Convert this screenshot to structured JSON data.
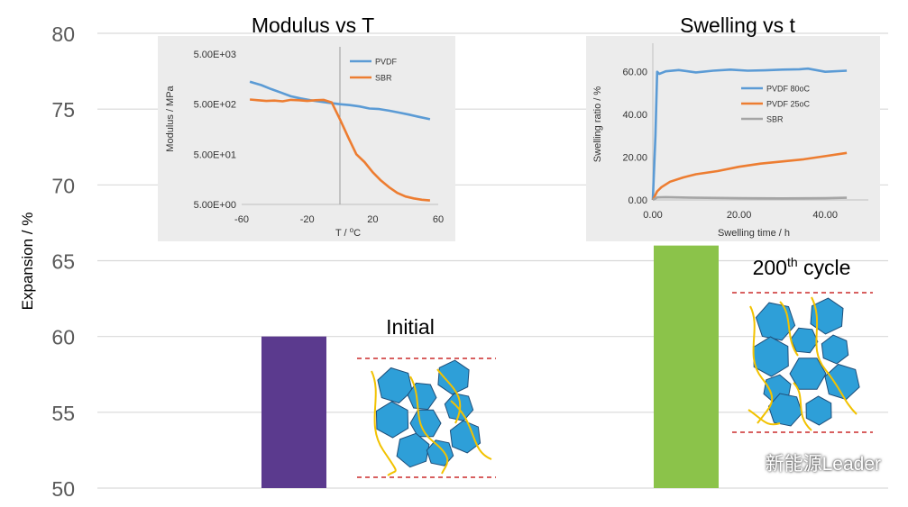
{
  "chart_data": [
    {
      "type": "bar",
      "ylabel": "Expansion / %",
      "ylim": [
        50,
        80
      ],
      "yticks": [
        50,
        55,
        60,
        65,
        70,
        75,
        80
      ],
      "categories": [
        "Initial",
        "200th cycle"
      ],
      "values": [
        60,
        66
      ],
      "colors": [
        "#5b3a8e",
        "#8bc34a"
      ],
      "annotations": {
        "initial": "Initial",
        "cycle_number": "200",
        "cycle_sup": "th",
        "cycle_word": " cycle"
      }
    },
    {
      "type": "line",
      "title": "Modulus vs T",
      "xlabel": "T / ",
      "xlabel_sup": "o",
      "xlabel_unit": "C",
      "ylabel": "Modulus / MPa",
      "yscale": "log",
      "ylim": [
        5,
        5000
      ],
      "yticks": [
        "5.00E+00",
        "5.00E+01",
        "5.00E+02",
        "5.00E+03"
      ],
      "xlim": [
        -60,
        60
      ],
      "xticks": [
        "-60",
        "-20",
        "20",
        "60"
      ],
      "series": [
        {
          "name": "PVDF",
          "color": "#5b9bd5",
          "x": [
            -55,
            -48,
            -42,
            -36,
            -30,
            -24,
            -18,
            -12,
            -6,
            0,
            6,
            12,
            18,
            24,
            30,
            36,
            42,
            48,
            55
          ],
          "y": [
            1400,
            1200,
            1000,
            850,
            720,
            650,
            600,
            560,
            530,
            500,
            480,
            450,
            410,
            400,
            370,
            340,
            310,
            280,
            250
          ]
        },
        {
          "name": "SBR",
          "color": "#ed7d31",
          "x": [
            -55,
            -50,
            -45,
            -40,
            -35,
            -30,
            -25,
            -20,
            -15,
            -10,
            -5,
            0,
            5,
            10,
            15,
            20,
            25,
            30,
            35,
            40,
            45,
            50,
            55
          ],
          "y": [
            620,
            600,
            580,
            590,
            570,
            610,
            600,
            580,
            600,
            610,
            540,
            250,
            110,
            50,
            35,
            22,
            15,
            11,
            8.5,
            7.2,
            6.6,
            6.2,
            6.0
          ]
        }
      ]
    },
    {
      "type": "line",
      "title": "Swelling vs t",
      "xlabel": "Swelling time / h",
      "ylabel": "Swelling ratio / %",
      "ylim": [
        0,
        70
      ],
      "yticks": [
        "0.00",
        "20.00",
        "40.00",
        "60.00"
      ],
      "xlim": [
        0,
        50
      ],
      "xticks": [
        "0.00",
        "20.00",
        "40.00"
      ],
      "series": [
        {
          "name": "PVDF 80oC",
          "color": "#5b9bd5",
          "x": [
            0,
            0.6,
            1.0,
            1.5,
            3,
            6,
            10,
            14,
            18,
            22,
            26,
            30,
            34,
            36,
            40,
            45
          ],
          "y": [
            0,
            30,
            60,
            59,
            60.2,
            60.8,
            59.7,
            60.5,
            61,
            60.5,
            60.7,
            61,
            61.2,
            61.5,
            60,
            60.5
          ]
        },
        {
          "name": "PVDF 25oC",
          "color": "#ed7d31",
          "x": [
            0,
            0.5,
            1,
            2,
            4,
            7,
            10,
            15,
            20,
            25,
            30,
            35,
            40,
            45
          ],
          "y": [
            0,
            2,
            4,
            6,
            8.5,
            10.5,
            12,
            13.5,
            15.5,
            17,
            18,
            19,
            20.5,
            22
          ]
        },
        {
          "name": "SBR",
          "color": "#a5a5a5",
          "x": [
            0,
            1,
            3,
            10,
            20,
            30,
            40,
            45
          ],
          "y": [
            0,
            1.2,
            1.3,
            1,
            0.8,
            0.7,
            0.8,
            1
          ]
        }
      ]
    }
  ],
  "watermark": {
    "text": "新能源Leader",
    "icon": "wechat-icon"
  }
}
